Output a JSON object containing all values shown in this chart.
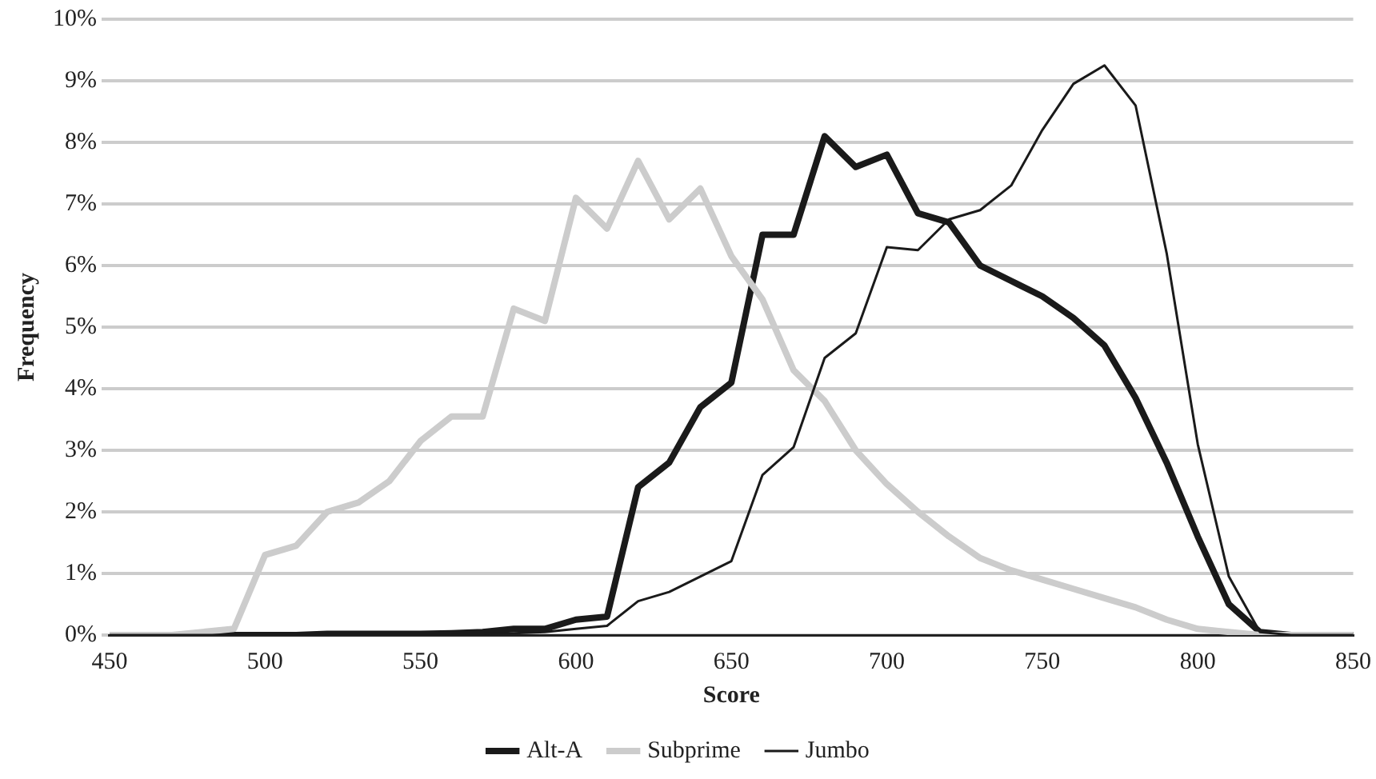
{
  "chart_data": {
    "type": "line",
    "xlabel": "Score",
    "ylabel": "Frequency",
    "x": [
      450,
      460,
      470,
      480,
      490,
      500,
      510,
      520,
      530,
      540,
      550,
      560,
      570,
      580,
      590,
      600,
      610,
      620,
      630,
      640,
      650,
      660,
      670,
      680,
      690,
      700,
      710,
      720,
      730,
      740,
      750,
      760,
      770,
      780,
      790,
      800,
      810,
      820,
      830,
      840,
      850
    ],
    "series": [
      {
        "name": "Alt-A",
        "color": "#1a1a1a",
        "values": [
          0,
          0,
          0,
          0,
          0,
          0,
          0,
          0.02,
          0.02,
          0.02,
          0.02,
          0.03,
          0.05,
          0.1,
          0.1,
          0.25,
          0.3,
          2.4,
          2.8,
          3.7,
          4.1,
          6.5,
          6.5,
          8.1,
          7.6,
          7.8,
          6.85,
          6.7,
          6.0,
          5.75,
          5.5,
          5.15,
          4.7,
          3.85,
          2.8,
          1.6,
          0.5,
          0.05,
          0,
          0,
          0
        ]
      },
      {
        "name": "Subprime",
        "color": "#cccccc",
        "values": [
          0,
          0,
          0,
          0.05,
          0.1,
          1.3,
          1.45,
          2.0,
          2.15,
          2.5,
          3.15,
          3.55,
          3.55,
          5.3,
          5.1,
          7.1,
          6.6,
          7.7,
          6.75,
          7.25,
          6.15,
          5.45,
          4.3,
          3.8,
          3.0,
          2.45,
          2.0,
          1.6,
          1.25,
          1.05,
          0.9,
          0.75,
          0.6,
          0.45,
          0.25,
          0.1,
          0.05,
          0,
          0,
          0,
          0
        ]
      },
      {
        "name": "Jumbo",
        "color": "#1a1a1a",
        "values": [
          0,
          0,
          0,
          0,
          0,
          0,
          0,
          0,
          0,
          0,
          0,
          0,
          0.02,
          0.03,
          0.05,
          0.1,
          0.15,
          0.55,
          0.7,
          0.95,
          1.2,
          2.6,
          3.05,
          4.5,
          4.9,
          6.3,
          6.25,
          6.75,
          6.9,
          7.3,
          8.2,
          8.95,
          9.25,
          8.6,
          6.2,
          3.1,
          0.95,
          0.05,
          0,
          0,
          0
        ]
      }
    ],
    "xlim": [
      450,
      850
    ],
    "xticks": [
      450,
      500,
      550,
      600,
      650,
      700,
      750,
      800,
      850
    ],
    "ylim": [
      0,
      10
    ],
    "yticks": [
      {
        "value": 0,
        "label": "0%"
      },
      {
        "value": 1,
        "label": "1%"
      },
      {
        "value": 2,
        "label": "2%"
      },
      {
        "value": 3,
        "label": "3%"
      },
      {
        "value": 4,
        "label": "4%"
      },
      {
        "value": 5,
        "label": "5%"
      },
      {
        "value": 6,
        "label": "6%"
      },
      {
        "value": 7,
        "label": "7%"
      },
      {
        "value": 8,
        "label": "8%"
      },
      {
        "value": 9,
        "label": "9%"
      },
      {
        "value": 10,
        "label": "10%"
      }
    ],
    "grid": "y",
    "legend": "bottom",
    "marker": "none",
    "line_style": "solid"
  }
}
